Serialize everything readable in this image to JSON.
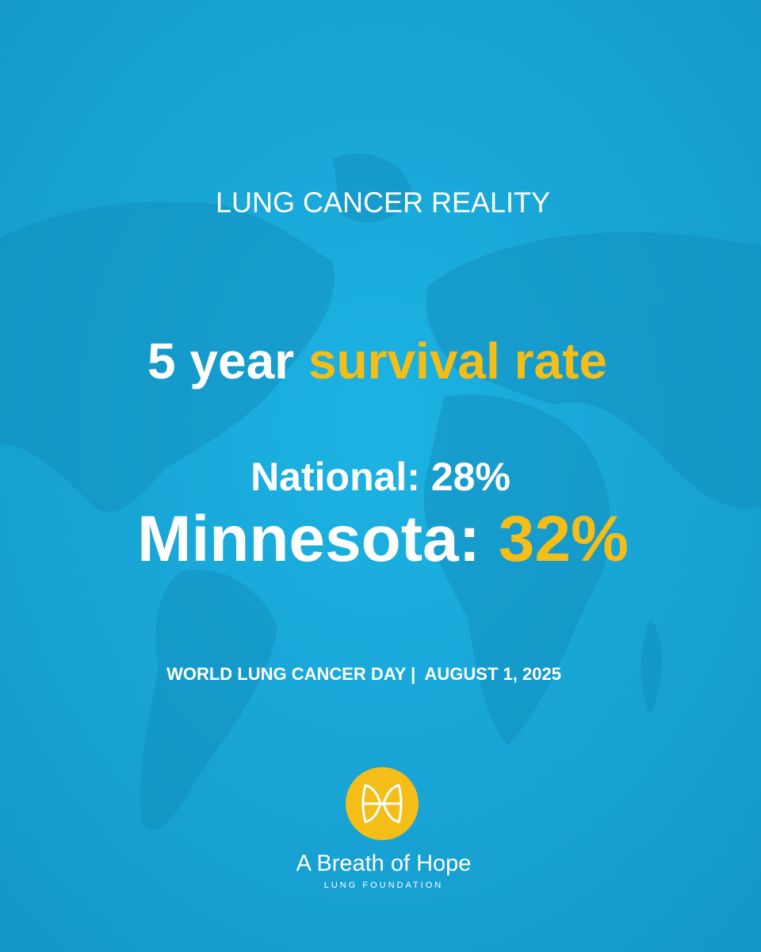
{
  "header": {
    "title": "LUNG CANCER REALITY"
  },
  "headline": {
    "lead": "5 year",
    "highlight": "survival rate"
  },
  "stats": {
    "national": "National: 28%",
    "state_label": "Minnesota:",
    "state_value": "32%"
  },
  "event": {
    "name": "WORLD LUNG CANCER DAY |",
    "date": "AUGUST 1, 2025"
  },
  "logo": {
    "name": "A Breath of Hope",
    "tagline": "LUNG FOUNDATION"
  }
}
